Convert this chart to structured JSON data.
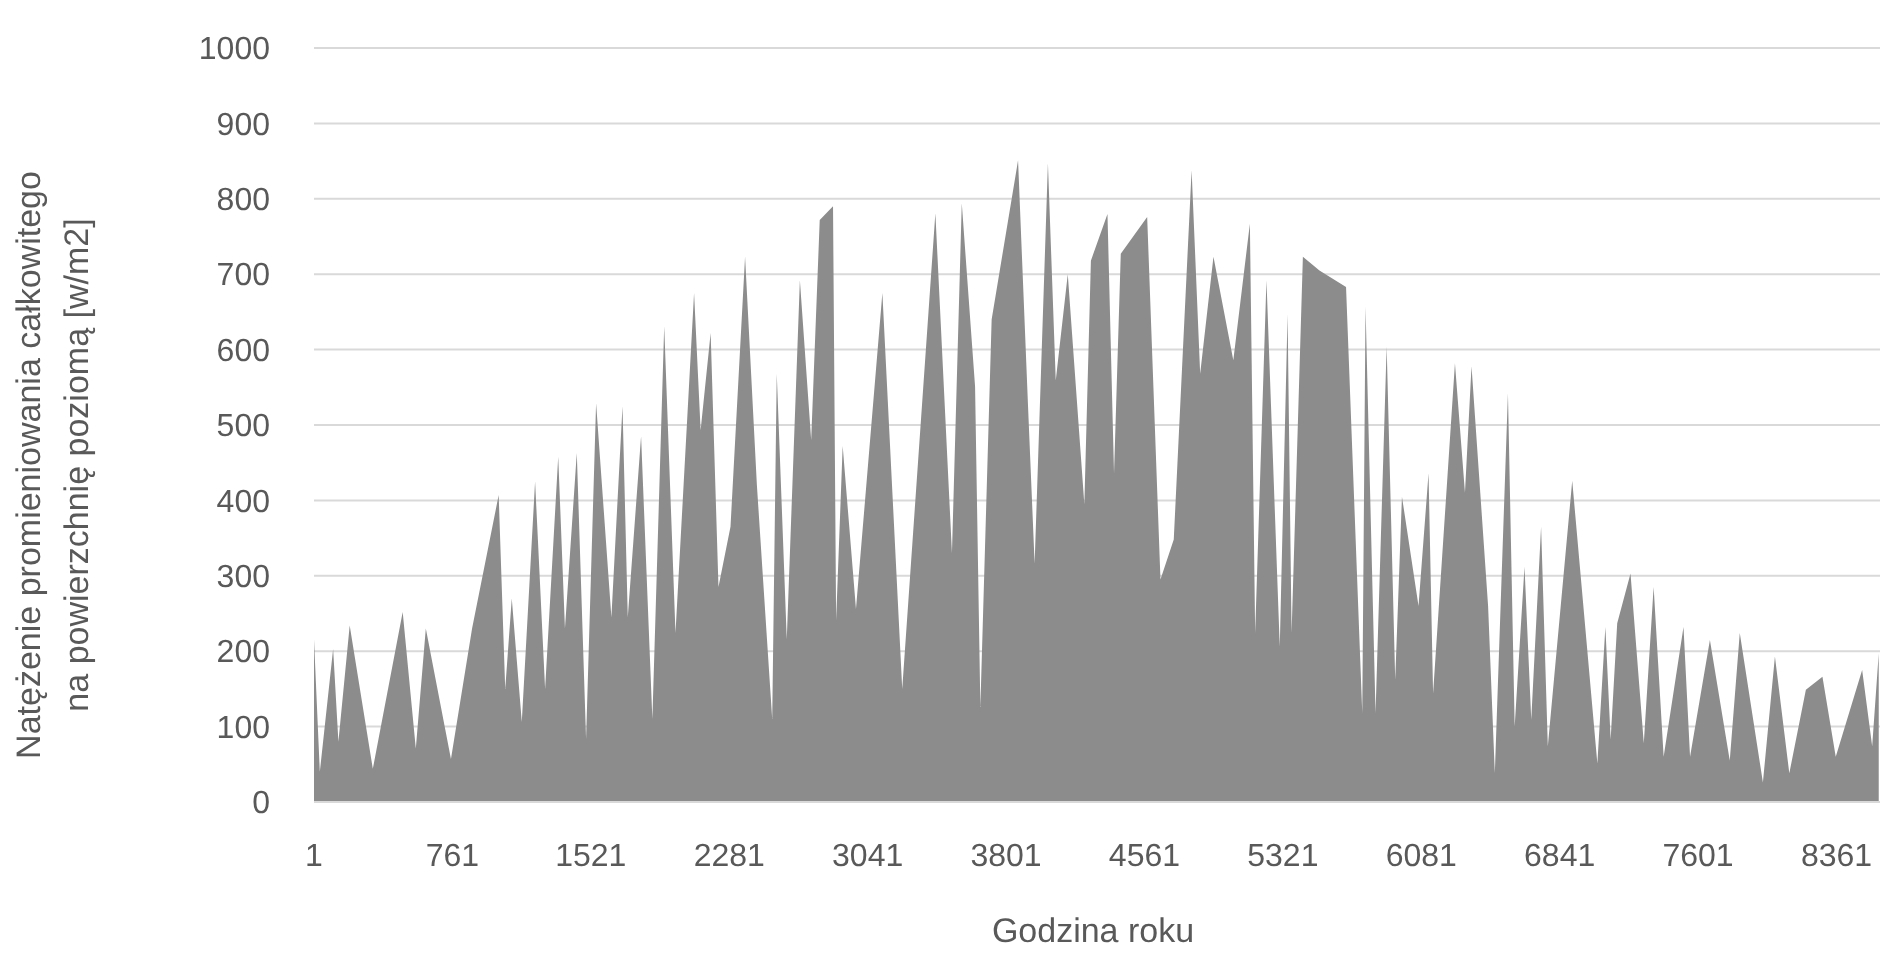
{
  "chart_data": {
    "type": "area",
    "xlabel": "Godzina roku",
    "ylabel": "Natężenie promieniowania całkowitego na powierzchnię poziomą [w/m2]",
    "xlim": [
      1,
      8600
    ],
    "xticks": [
      1,
      761,
      1521,
      2281,
      3041,
      3801,
      4561,
      5321,
      6081,
      6841,
      7601,
      8361
    ],
    "ylim": [
      0,
      1000
    ],
    "yticks": [
      0,
      100,
      200,
      300,
      400,
      500,
      600,
      700,
      800,
      900,
      1000
    ],
    "grid": "y",
    "series": [
      {
        "color": "#8c8c8c",
        "x": [
          1,
          33,
          106,
          135,
          197,
          324,
          488,
          560,
          615,
          753,
          869,
          1015,
          1051,
          1087,
          1142,
          1215,
          1270,
          1342,
          1379,
          1444,
          1495,
          1550,
          1634,
          1695,
          1724,
          1797,
          1859,
          1924,
          1986,
          2088,
          2124,
          2179,
          2222,
          2288,
          2368,
          2433,
          2517,
          2542,
          2597,
          2669,
          2731,
          2778,
          2851,
          2868,
          2904,
          2977,
          3122,
          3231,
          3413,
          3504,
          3558,
          3631,
          3660,
          3722,
          3867,
          3922,
          3958,
          4031,
          4074,
          4140,
          4231,
          4267,
          4358,
          4394,
          4431,
          4576,
          4649,
          4722,
          4820,
          4867,
          4940,
          5049,
          5140,
          5169,
          5231,
          5304,
          5347,
          5369,
          5431,
          5522,
          5668,
          5757,
          5775,
          5830,
          5891,
          5938,
          5975,
          6066,
          6121,
          6146,
          6266,
          6321,
          6357,
          6448,
          6485,
          6557,
          6594,
          6648,
          6685,
          6739,
          6776,
          6910,
          7048,
          7092,
          7121,
          7157,
          7230,
          7303,
          7357,
          7412,
          7521,
          7557,
          7666,
          7775,
          7830,
          7957,
          8023,
          8102,
          8193,
          8284,
          8357,
          8502,
          8557,
          8593
        ],
        "values": [
          216,
          40,
          203,
          80,
          234,
          44,
          252,
          71,
          230,
          57,
          230,
          407,
          150,
          270,
          106,
          425,
          150,
          458,
          230,
          463,
          84,
          529,
          245,
          525,
          245,
          485,
          110,
          631,
          224,
          675,
          493,
          622,
          285,
          365,
          723,
          420,
          110,
          568,
          216,
          692,
          480,
          772,
          790,
          241,
          472,
          256,
          675,
          150,
          781,
          330,
          794,
          551,
          126,
          640,
          851,
          524,
          316,
          847,
          559,
          700,
          395,
          718,
          780,
          436,
          727,
          776,
          295,
          348,
          838,
          568,
          723,
          586,
          767,
          224,
          692,
          206,
          647,
          224,
          723,
          705,
          683,
          118,
          657,
          118,
          604,
          162,
          405,
          260,
          436,
          144,
          582,
          410,
          578,
          260,
          38,
          542,
          100,
          312,
          109,
          365,
          74,
          426,
          51,
          232,
          83,
          237,
          303,
          78,
          285,
          60,
          232,
          60,
          215,
          55,
          224,
          26,
          193,
          38,
          149,
          166,
          60,
          175,
          74,
          197
        ]
      }
    ]
  }
}
